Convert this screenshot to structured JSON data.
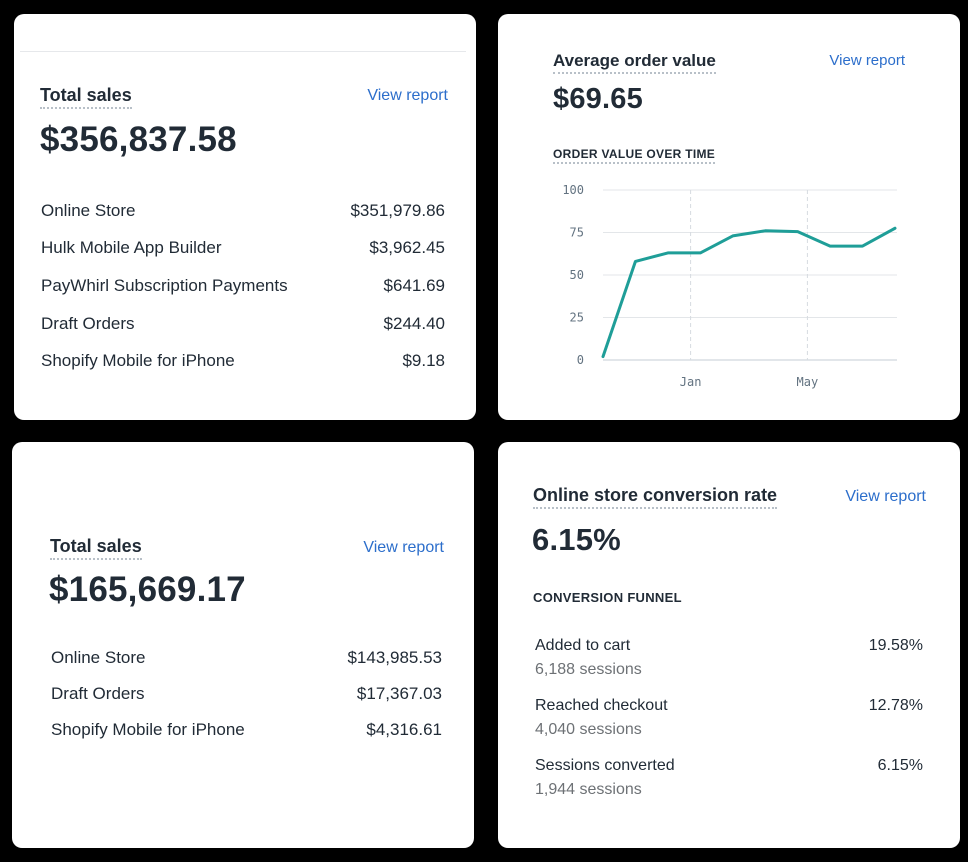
{
  "total_sales_1": {
    "title": "Total sales",
    "link": "View report",
    "amount": "$356,837.58",
    "rows": [
      {
        "label": "Online Store",
        "value": "$351,979.86"
      },
      {
        "label": "Hulk Mobile App Builder",
        "value": "$3,962.45"
      },
      {
        "label": "PayWhirl Subscription Payments",
        "value": "$641.69"
      },
      {
        "label": "Draft Orders",
        "value": "$244.40"
      },
      {
        "label": "Shopify Mobile for iPhone",
        "value": "$9.18"
      }
    ]
  },
  "aov": {
    "title": "Average order value",
    "link": "View report",
    "amount": "$69.65",
    "chart_label": "ORDER VALUE OVER TIME"
  },
  "chart_data": {
    "type": "line",
    "title": "ORDER VALUE OVER TIME",
    "x": [
      0,
      1,
      2,
      3,
      4,
      5,
      6,
      7,
      8,
      9
    ],
    "series": [
      {
        "name": "Average order value",
        "values": [
          2,
          58,
          63,
          63,
          73,
          76,
          75.5,
          67,
          67,
          77.5
        ],
        "color": "#1f9e98"
      }
    ],
    "yticks": [
      0,
      25,
      50,
      75,
      100
    ],
    "ylim": [
      0,
      100
    ],
    "xtick_labels": [
      {
        "x": 2.7,
        "label": "Jan"
      },
      {
        "x": 6.3,
        "label": "May"
      }
    ],
    "xlim": [
      0,
      9
    ],
    "grid": true
  },
  "total_sales_2": {
    "title": "Total sales",
    "link": "View report",
    "amount": "$165,669.17",
    "rows": [
      {
        "label": "Online Store",
        "value": "$143,985.53"
      },
      {
        "label": "Draft Orders",
        "value": "$17,367.03"
      },
      {
        "label": "Shopify Mobile for iPhone",
        "value": "$4,316.61"
      }
    ]
  },
  "conversion": {
    "title": "Online store conversion rate",
    "link": "View report",
    "amount": "6.15%",
    "funnel_label": "CONVERSION FUNNEL",
    "steps": [
      {
        "label": "Added to cart",
        "sessions": "6,188 sessions",
        "percent": "19.58%"
      },
      {
        "label": "Reached checkout",
        "sessions": "4,040 sessions",
        "percent": "12.78%"
      },
      {
        "label": "Sessions converted",
        "sessions": "1,944 sessions",
        "percent": "6.15%"
      }
    ]
  }
}
